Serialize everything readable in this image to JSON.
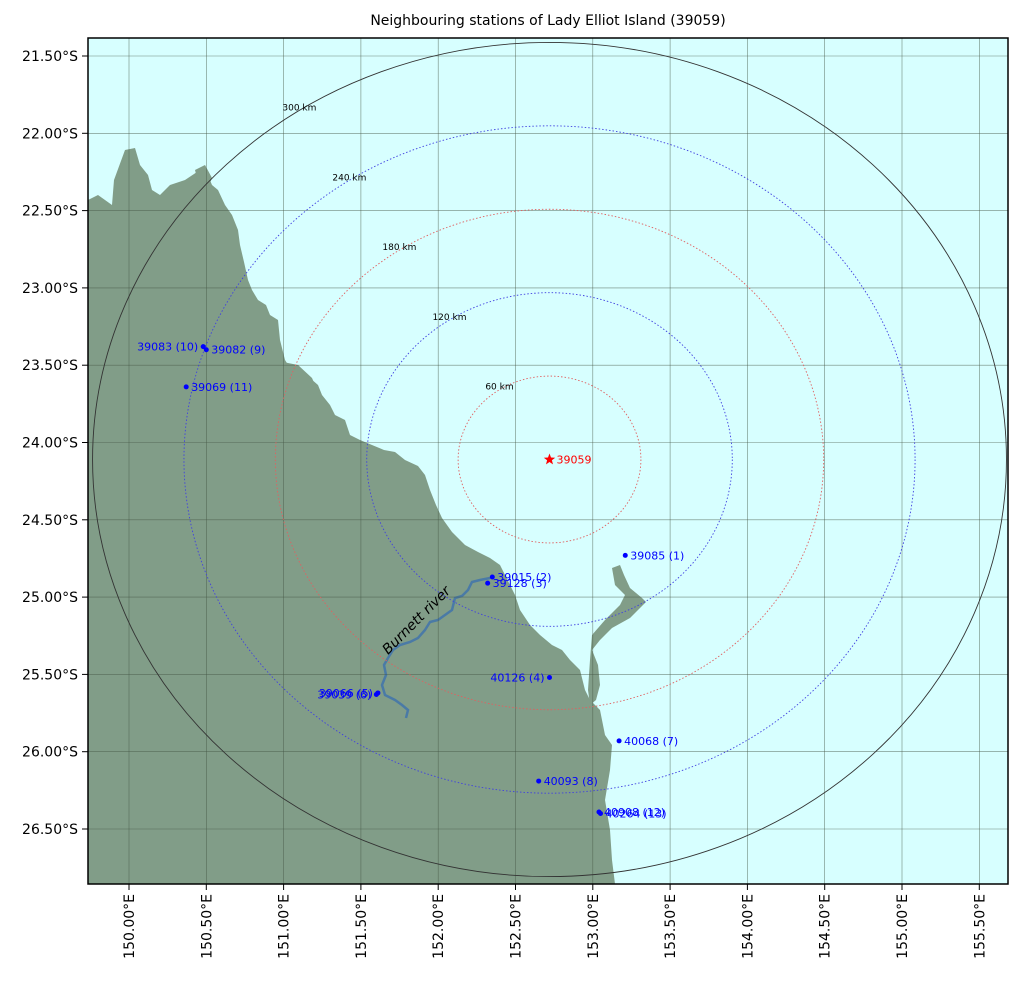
{
  "title": "Neighbouring stations of Lady Elliot Island (39059)",
  "colors": {
    "ocean": "#d7ffff",
    "land": "#819d88",
    "river": "#4a7aa6",
    "station": "#0000ff",
    "target": "#ff0000",
    "grid": "#445544"
  },
  "lat_ticks": [
    "21.50°S",
    "22.00°S",
    "22.50°S",
    "23.00°S",
    "23.50°S",
    "24.00°S",
    "24.50°S",
    "25.00°S",
    "25.50°S",
    "26.00°S",
    "26.50°S"
  ],
  "lon_ticks": [
    "150.00°E",
    "150.50°E",
    "151.00°E",
    "151.50°E",
    "152.00°E",
    "152.50°E",
    "153.00°E",
    "153.50°E",
    "154.00°E",
    "154.50°E",
    "155.00°E",
    "155.50°E"
  ],
  "target": {
    "label": "39059",
    "lat": -24.11,
    "lon": 152.72
  },
  "rings": [
    {
      "label": "60 km",
      "km": 60,
      "color": "#e06060",
      "style": "dotted"
    },
    {
      "label": "120 km",
      "km": 120,
      "color": "#4040e0",
      "style": "dotted"
    },
    {
      "label": "180 km",
      "km": 180,
      "color": "#e06060",
      "style": "dotted"
    },
    {
      "label": "240 km",
      "km": 240,
      "color": "#4040e0",
      "style": "dotted"
    },
    {
      "label": "300 km",
      "km": 300,
      "color": "#333333",
      "style": "solid"
    }
  ],
  "stations": [
    {
      "label": "39085 (1)",
      "lat": -24.73,
      "lon": 153.21,
      "anchor": "start"
    },
    {
      "label": "39015 (2)",
      "lat": -24.87,
      "lon": 152.35,
      "anchor": "start"
    },
    {
      "label": "39128 (3)",
      "lat": -24.91,
      "lon": 152.32,
      "anchor": "start"
    },
    {
      "label": "40126 (4)",
      "lat": -25.52,
      "lon": 152.72,
      "anchor": "end"
    },
    {
      "label": "39066 (5)",
      "lat": -25.62,
      "lon": 151.61,
      "anchor": "end"
    },
    {
      "label": "39039 (6)",
      "lat": -25.63,
      "lon": 151.6,
      "anchor": "end"
    },
    {
      "label": "40068 (7)",
      "lat": -25.93,
      "lon": 153.17,
      "anchor": "start"
    },
    {
      "label": "40093 (8)",
      "lat": -26.19,
      "lon": 152.65,
      "anchor": "start"
    },
    {
      "label": "39082 (9)",
      "lat": -23.4,
      "lon": 150.5,
      "anchor": "start"
    },
    {
      "label": "39083 (10)",
      "lat": -23.38,
      "lon": 150.48,
      "anchor": "end"
    },
    {
      "label": "39069 (11)",
      "lat": -23.64,
      "lon": 150.37,
      "anchor": "start"
    },
    {
      "label": "40908 (12)",
      "lat": -26.39,
      "lon": 153.04,
      "anchor": "start"
    },
    {
      "label": "40264 (13)",
      "lat": -26.4,
      "lon": 153.05,
      "anchor": "start"
    }
  ],
  "river": {
    "label": "Burnett river"
  }
}
